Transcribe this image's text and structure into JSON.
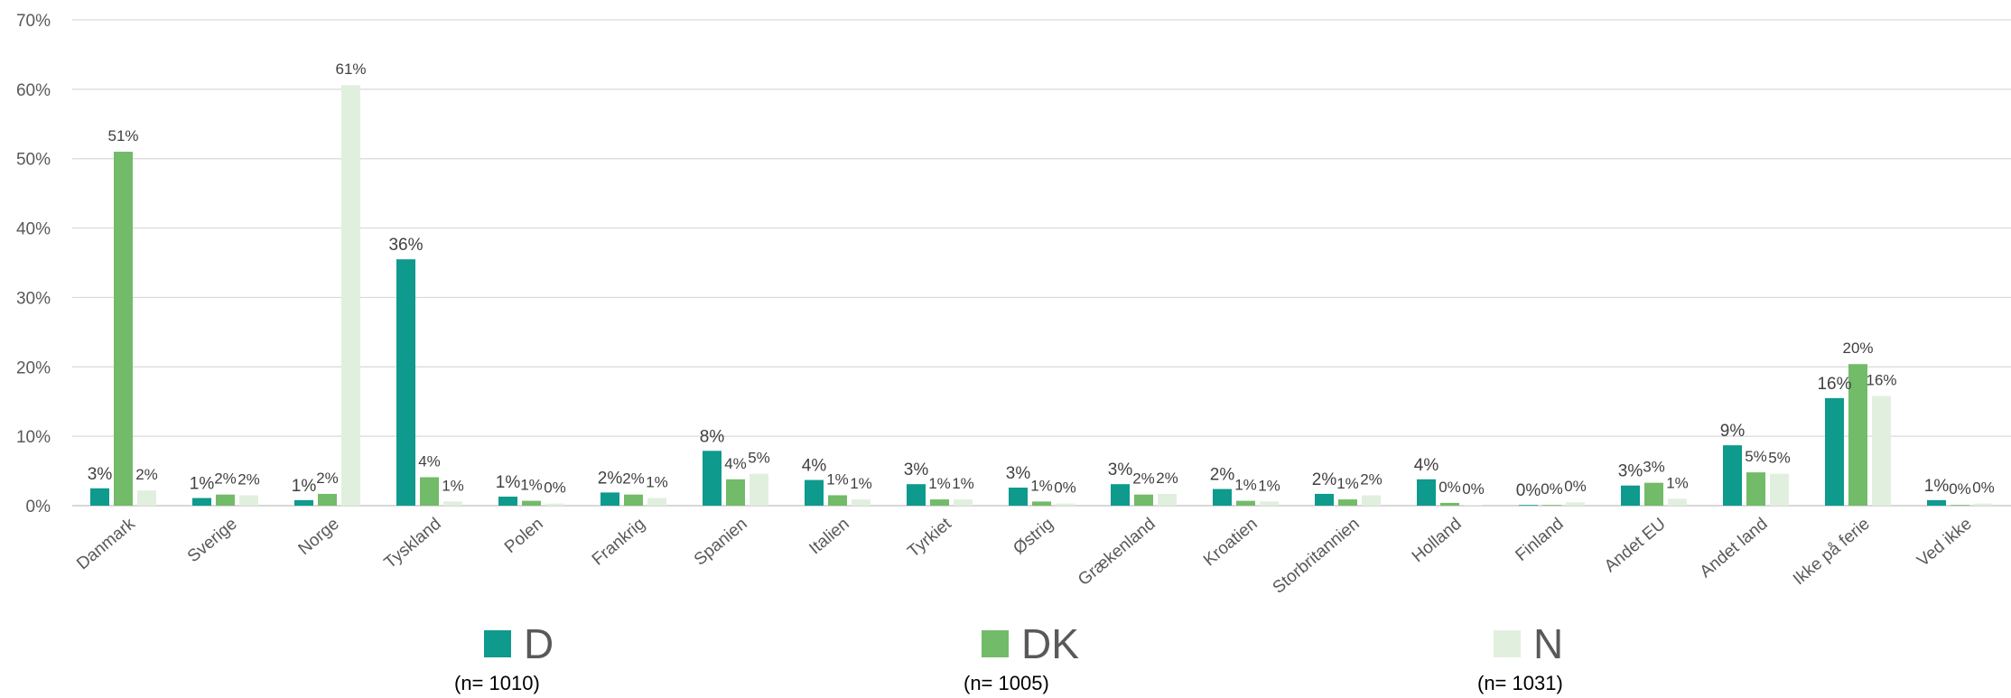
{
  "chart_data": {
    "type": "bar",
    "categories": [
      "Danmark",
      "Sverige",
      "Norge",
      "Tyskland",
      "Polen",
      "Frankrig",
      "Spanien",
      "Italien",
      "Tyrkiet",
      "Østrig",
      "Grækenland",
      "Kroatien",
      "Storbritannien",
      "Holland",
      "Finland",
      "Andet EU",
      "Andet land",
      "Ikke på ferie",
      "Ved ikke"
    ],
    "series": [
      {
        "name": "D",
        "color": "#0e9a8d",
        "values": [
          2.5,
          1.1,
          0.8,
          35.5,
          1.3,
          1.9,
          7.9,
          3.7,
          3.1,
          2.6,
          3.1,
          2.4,
          1.7,
          3.8,
          0.1,
          2.9,
          8.7,
          15.5,
          0.8
        ],
        "labels": [
          "3%",
          "1%",
          "1%",
          "36%",
          "1%",
          "2%",
          "8%",
          "4%",
          "3%",
          "3%",
          "3%",
          "2%",
          "2%",
          "4%",
          "0%",
          "3%",
          "9%",
          "16%",
          "1%"
        ]
      },
      {
        "name": "DK",
        "color": "#72bb68",
        "values": [
          51.0,
          1.6,
          1.7,
          4.1,
          0.7,
          1.6,
          3.8,
          1.5,
          0.9,
          0.6,
          1.6,
          0.7,
          0.9,
          0.4,
          0.1,
          3.3,
          4.8,
          20.4,
          0.1
        ],
        "labels": [
          "51%",
          "2%",
          "2%",
          "4%",
          "1%",
          "2%",
          "4%",
          "1%",
          "1%",
          "1%",
          "2%",
          "1%",
          "1%",
          "0%",
          "0%",
          "3%",
          "5%",
          "20%",
          "0%"
        ]
      },
      {
        "name": "N",
        "color": "#e1f0de",
        "values": [
          2.2,
          1.5,
          60.6,
          0.6,
          0.3,
          1.1,
          4.6,
          0.9,
          0.9,
          0.3,
          1.7,
          0.6,
          1.5,
          0.1,
          0.5,
          1.0,
          4.6,
          15.8,
          0.3
        ],
        "labels": [
          "2%",
          "2%",
          "61%",
          "1%",
          "0%",
          "1%",
          "5%",
          "1%",
          "1%",
          "0%",
          "2%",
          "1%",
          "2%",
          "0%",
          "0%",
          "1%",
          "5%",
          "16%",
          "0%"
        ]
      }
    ],
    "ylim": [
      0,
      70
    ],
    "yticks": [
      "0%",
      "10%",
      "20%",
      "30%",
      "40%",
      "50%",
      "60%",
      "70%"
    ],
    "grid": true,
    "legend_position": "bottom",
    "legend_notes": [
      "(n= 1010)",
      "(n= 1005)",
      "(n= 1031)"
    ]
  }
}
